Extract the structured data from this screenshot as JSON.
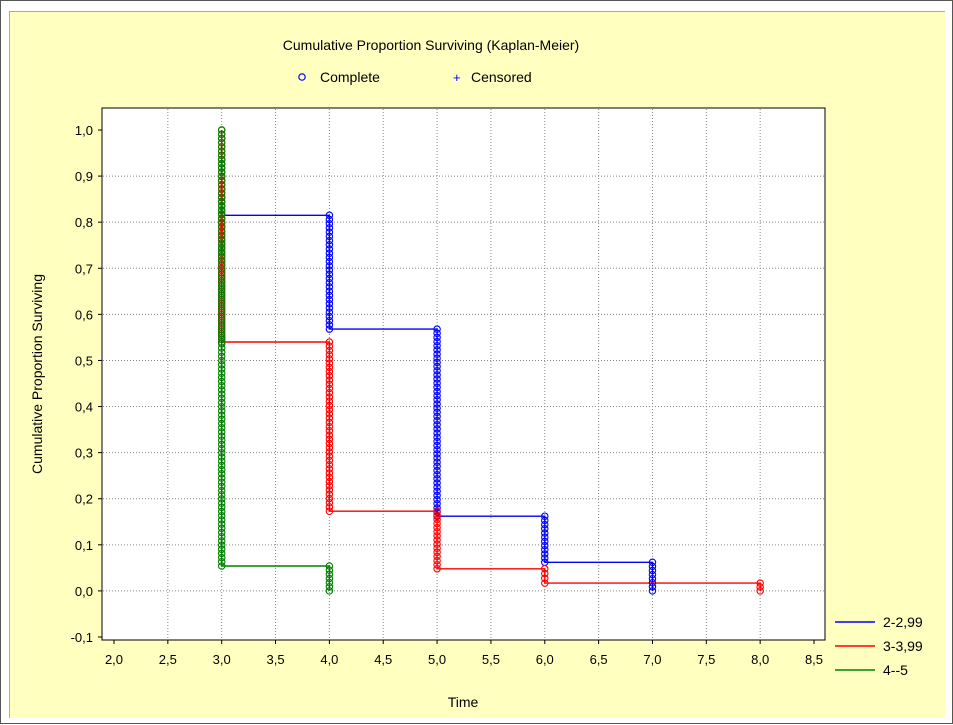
{
  "chart_data": {
    "type": "line",
    "title": "Cumulative Proportion Surviving (Kaplan-Meier)",
    "xlabel": "Time",
    "ylabel": "Cumulative Proportion Surviving",
    "xlim": [
      2.0,
      8.5
    ],
    "ylim": [
      -0.1,
      1.0
    ],
    "x_ticks": [
      "2,0",
      "2,5",
      "3,0",
      "3,5",
      "4,0",
      "4,5",
      "5,0",
      "5,5",
      "6,0",
      "6,5",
      "7,0",
      "7,5",
      "8,0",
      "8,5"
    ],
    "y_ticks": [
      "-0,1",
      "0,0",
      "0,1",
      "0,2",
      "0,3",
      "0,4",
      "0,5",
      "0,6",
      "0,7",
      "0,8",
      "0,9",
      "1,0"
    ],
    "grid": true,
    "marker_legend": [
      {
        "symbol": "o",
        "label": "Complete"
      },
      {
        "symbol": "+",
        "label": "Censored"
      }
    ],
    "legend_position": "bottom-right",
    "series": [
      {
        "name": "2-2,99",
        "color": "#0000ff",
        "steps": [
          [
            3.0,
            1.0
          ],
          [
            3.0,
            0.815
          ],
          [
            4.0,
            0.815
          ],
          [
            4.0,
            0.568
          ],
          [
            5.0,
            0.568
          ],
          [
            5.0,
            0.162
          ],
          [
            6.0,
            0.162
          ],
          [
            6.0,
            0.062
          ],
          [
            7.0,
            0.062
          ],
          [
            7.0,
            0.0
          ]
        ],
        "complete_events": [
          {
            "x": 4.0,
            "from": 0.815,
            "to": 0.568
          },
          {
            "x": 5.0,
            "from": 0.568,
            "to": 0.162
          },
          {
            "x": 6.0,
            "from": 0.162,
            "to": 0.062
          },
          {
            "x": 7.0,
            "from": 0.062,
            "to": 0.0
          }
        ]
      },
      {
        "name": "3-3,99",
        "color": "#ff0000",
        "steps": [
          [
            3.0,
            1.0
          ],
          [
            3.0,
            0.54
          ],
          [
            4.0,
            0.54
          ],
          [
            4.0,
            0.173
          ],
          [
            5.0,
            0.173
          ],
          [
            5.0,
            0.048
          ],
          [
            6.0,
            0.048
          ],
          [
            6.0,
            0.017
          ],
          [
            8.0,
            0.017
          ],
          [
            8.0,
            0.0
          ]
        ],
        "complete_events": [
          {
            "x": 3.0,
            "from": 1.0,
            "to": 0.54
          },
          {
            "x": 4.0,
            "from": 0.54,
            "to": 0.173
          },
          {
            "x": 5.0,
            "from": 0.173,
            "to": 0.048
          },
          {
            "x": 6.0,
            "from": 0.048,
            "to": 0.017
          },
          {
            "x": 8.0,
            "from": 0.017,
            "to": 0.0
          }
        ]
      },
      {
        "name": "4--5",
        "color": "#008000",
        "steps": [
          [
            3.0,
            1.0
          ],
          [
            3.0,
            0.054
          ],
          [
            4.0,
            0.054
          ],
          [
            4.0,
            0.0
          ]
        ],
        "complete_events": [
          {
            "x": 3.0,
            "from": 1.0,
            "to": 0.054
          },
          {
            "x": 4.0,
            "from": 0.054,
            "to": 0.0
          }
        ]
      }
    ]
  }
}
